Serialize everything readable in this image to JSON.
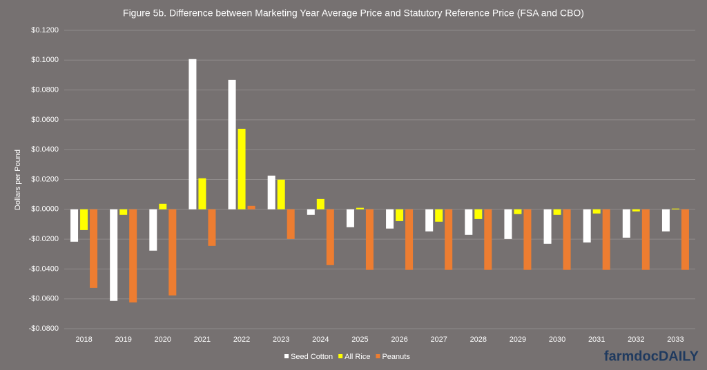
{
  "chart_data": {
    "type": "bar",
    "title": "Figure 5b. Difference between Marketing Year Average Price and Statutory Reference Price (FSA and CBO)",
    "y_label": "Dollars per Pound",
    "categories": [
      "2018",
      "2019",
      "2020",
      "2021",
      "2022",
      "2023",
      "2024",
      "2025",
      "2026",
      "2027",
      "2028",
      "2029",
      "2030",
      "2031",
      "2032",
      "2033"
    ],
    "series": [
      {
        "name": "Seed Cotton",
        "color": "#ffffff",
        "values": [
          -0.0217,
          -0.0614,
          -0.0277,
          0.1007,
          0.0868,
          0.0226,
          -0.0037,
          -0.012,
          -0.0129,
          -0.0148,
          -0.0171,
          -0.0199,
          -0.0231,
          -0.0222,
          -0.019,
          -0.0148
        ]
      },
      {
        "name": "All Rice",
        "color": "#ffff00",
        "values": [
          -0.0139,
          -0.0037,
          0.0037,
          0.0208,
          0.054,
          0.0199,
          0.0069,
          0.001,
          -0.0079,
          -0.0083,
          -0.0065,
          -0.0032,
          -0.0037,
          -0.0028,
          -0.0014,
          0.0005
        ]
      },
      {
        "name": "Peanuts",
        "color": "#ed7d31",
        "values": [
          -0.0527,
          -0.0624,
          -0.0577,
          -0.0245,
          0.0023,
          -0.0199,
          -0.0374,
          -0.0406,
          -0.0406,
          -0.0406,
          -0.0406,
          -0.0406,
          -0.0406,
          -0.0406,
          -0.0406,
          -0.0406
        ]
      }
    ],
    "ylim": [
      -0.08,
      0.12
    ],
    "yticks": [
      {
        "value": 0.12,
        "label": "$0.1200"
      },
      {
        "value": 0.1,
        "label": "$0.1000"
      },
      {
        "value": 0.08,
        "label": "$0.0800"
      },
      {
        "value": 0.06,
        "label": "$0.0600"
      },
      {
        "value": 0.04,
        "label": "$0.0400"
      },
      {
        "value": 0.02,
        "label": "$0.0200"
      },
      {
        "value": 0,
        "label": "$0.0000"
      },
      {
        "value": -0.02,
        "label": "-$0.0200"
      },
      {
        "value": -0.04,
        "label": "-$0.0400"
      },
      {
        "value": -0.06,
        "label": "-$0.0600"
      },
      {
        "value": -0.08,
        "label": "-$0.0800"
      }
    ],
    "grid": true,
    "legend": "bottom",
    "logo": "farmdocDAILY"
  }
}
